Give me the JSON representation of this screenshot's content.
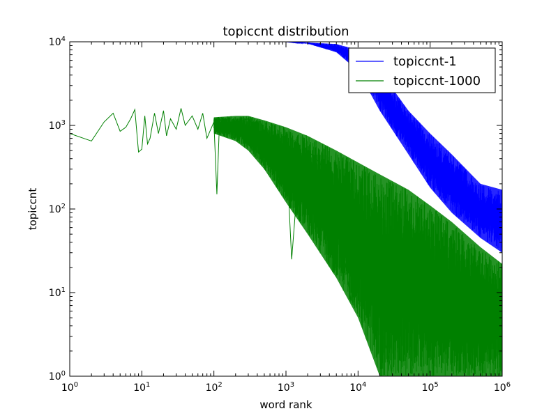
{
  "chart_data": {
    "type": "line",
    "title": "topiccnt distribution",
    "xlabel": "word rank",
    "ylabel": "topiccnt",
    "x_scale": "log",
    "y_scale": "log",
    "xlim": [
      1,
      1000000
    ],
    "ylim": [
      1,
      10000
    ],
    "x_ticks": [
      {
        "value": 1,
        "base": "10",
        "exp": "0"
      },
      {
        "value": 10,
        "base": "10",
        "exp": "1"
      },
      {
        "value": 100,
        "base": "10",
        "exp": "2"
      },
      {
        "value": 1000,
        "base": "10",
        "exp": "3"
      },
      {
        "value": 10000,
        "base": "10",
        "exp": "4"
      },
      {
        "value": 100000,
        "base": "10",
        "exp": "5"
      },
      {
        "value": 1000000,
        "base": "10",
        "exp": "6"
      }
    ],
    "y_ticks": [
      {
        "value": 1,
        "base": "10",
        "exp": "0"
      },
      {
        "value": 10,
        "base": "10",
        "exp": "1"
      },
      {
        "value": 100,
        "base": "10",
        "exp": "2"
      },
      {
        "value": 1000,
        "base": "10",
        "exp": "3"
      },
      {
        "value": 10000,
        "base": "10",
        "exp": "4"
      }
    ],
    "legend_position": "top-right",
    "grid": false,
    "series": [
      {
        "name": "topiccnt-1",
        "color": "#0000ff",
        "upper": [
          [
            1,
            10000
          ],
          [
            1000,
            10000
          ],
          [
            2000,
            9800
          ],
          [
            5000,
            9400
          ],
          [
            10000,
            8000
          ],
          [
            20000,
            4500
          ],
          [
            50000,
            1500
          ],
          [
            100000,
            800
          ],
          [
            200000,
            450
          ],
          [
            500000,
            200
          ],
          [
            1000000,
            170
          ]
        ],
        "lower": [
          [
            1,
            10000
          ],
          [
            1000,
            10000
          ],
          [
            2000,
            9500
          ],
          [
            5000,
            7500
          ],
          [
            10000,
            4500
          ],
          [
            20000,
            1500
          ],
          [
            50000,
            450
          ],
          [
            100000,
            180
          ],
          [
            200000,
            90
          ],
          [
            500000,
            45
          ],
          [
            1000000,
            30
          ]
        ]
      },
      {
        "name": "topiccnt-1000",
        "color": "#008000",
        "points": [
          [
            1,
            800
          ],
          [
            2,
            650
          ],
          [
            3,
            1100
          ],
          [
            4,
            1400
          ],
          [
            5,
            850
          ],
          [
            6,
            950
          ],
          [
            7,
            1200
          ],
          [
            8,
            1550
          ],
          [
            9,
            480
          ],
          [
            10,
            520
          ],
          [
            11,
            1300
          ],
          [
            12,
            600
          ],
          [
            13,
            700
          ],
          [
            15,
            1400
          ],
          [
            17,
            800
          ],
          [
            20,
            1500
          ],
          [
            22,
            750
          ],
          [
            25,
            1200
          ],
          [
            30,
            900
          ],
          [
            35,
            1600
          ],
          [
            40,
            1000
          ],
          [
            50,
            1300
          ],
          [
            60,
            900
          ],
          [
            70,
            1400
          ],
          [
            80,
            700
          ],
          [
            100,
            1100
          ],
          [
            110,
            150
          ],
          [
            120,
            1200
          ],
          [
            150,
            900
          ],
          [
            200,
            1100
          ],
          [
            300,
            1200
          ],
          [
            400,
            900
          ],
          [
            600,
            700
          ],
          [
            800,
            200
          ],
          [
            1000,
            600
          ],
          [
            1200,
            25
          ],
          [
            1500,
            300
          ],
          [
            2000,
            500
          ],
          [
            3000,
            350
          ],
          [
            5000,
            120
          ],
          [
            8000,
            8
          ],
          [
            10000,
            100
          ],
          [
            20000,
            5
          ],
          [
            30000,
            1
          ],
          [
            40000,
            1
          ],
          [
            60000,
            1
          ],
          [
            100000,
            1
          ],
          [
            200000,
            1
          ],
          [
            500000,
            1
          ],
          [
            1000000,
            1
          ]
        ],
        "upper": [
          [
            100,
            1250
          ],
          [
            200,
            1300
          ],
          [
            300,
            1300
          ],
          [
            500,
            1150
          ],
          [
            1000,
            950
          ],
          [
            2000,
            750
          ],
          [
            5000,
            500
          ],
          [
            10000,
            360
          ],
          [
            20000,
            260
          ],
          [
            50000,
            170
          ],
          [
            100000,
            110
          ],
          [
            200000,
            70
          ],
          [
            500000,
            35
          ],
          [
            1000000,
            22
          ]
        ],
        "lower": [
          [
            100,
            800
          ],
          [
            200,
            650
          ],
          [
            300,
            500
          ],
          [
            500,
            300
          ],
          [
            1000,
            120
          ],
          [
            2000,
            50
          ],
          [
            5000,
            15
          ],
          [
            10000,
            5
          ],
          [
            20000,
            1
          ],
          [
            50000,
            1
          ],
          [
            100000,
            1
          ],
          [
            200000,
            1
          ],
          [
            500000,
            1
          ],
          [
            1000000,
            1
          ]
        ]
      }
    ]
  }
}
